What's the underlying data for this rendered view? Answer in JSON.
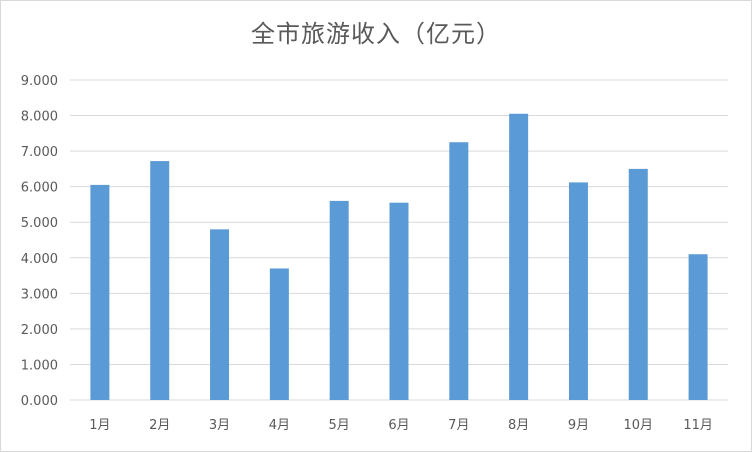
{
  "chart_data": {
    "type": "bar",
    "title": "全市旅游收入（亿元）",
    "categories": [
      "1月",
      "2月",
      "3月",
      "4月",
      "5月",
      "6月",
      "7月",
      "8月",
      "9月",
      "10月",
      "11月"
    ],
    "values": [
      6.05,
      6.72,
      4.8,
      3.7,
      5.6,
      5.55,
      7.25,
      8.05,
      6.12,
      6.5,
      4.1
    ],
    "y_ticks": [
      "0.000",
      "1.000",
      "2.000",
      "3.000",
      "4.000",
      "5.000",
      "6.000",
      "7.000",
      "8.000",
      "9.000"
    ],
    "ylim": [
      0,
      9
    ],
    "xlabel": "",
    "ylabel": "",
    "grid": true,
    "legend": "none",
    "bar_color": "#5b9bd5",
    "grid_color": "#d9d9d9"
  }
}
